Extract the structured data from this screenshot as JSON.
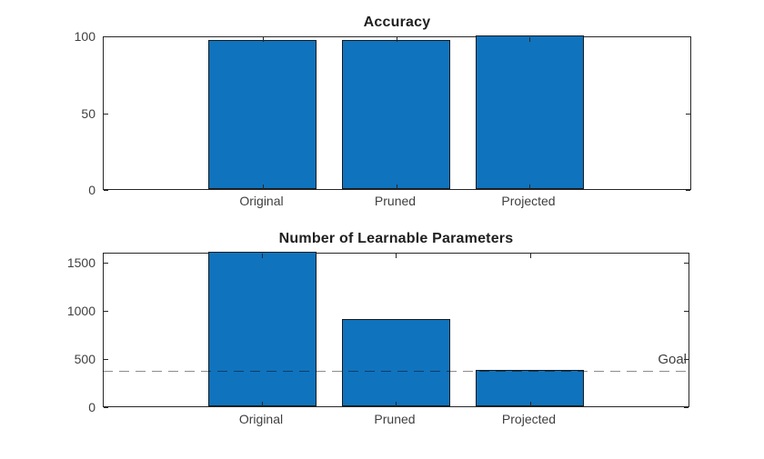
{
  "colors": {
    "bar_fill": "#1073BD",
    "bar_edge": "#1a1a1a",
    "axis": "#262626",
    "tick_label": "#3f3f3f",
    "title": "#1f1f1f",
    "goal_line": "#8c8c8c",
    "goal_text": "#3d3d3d",
    "background": "#ffffff"
  },
  "chart_data": [
    {
      "type": "bar",
      "title": "Accuracy",
      "categories": [
        "Original",
        "Pruned",
        "Projected"
      ],
      "values": [
        97,
        97,
        100
      ],
      "ylim": [
        0,
        100
      ],
      "yticks": [
        0,
        50,
        100
      ],
      "ytick_labels": [
        "0",
        "50",
        "100"
      ],
      "grid": false,
      "box": true,
      "legend": null
    },
    {
      "type": "bar",
      "title": "Number of Learnable Parameters",
      "categories": [
        "Original",
        "Pruned",
        "Projected"
      ],
      "values": [
        1600,
        900,
        380
      ],
      "ylim": [
        0,
        1600
      ],
      "yticks": [
        0,
        500,
        1000,
        1500
      ],
      "ytick_labels": [
        "0",
        "500",
        "1000",
        "1500"
      ],
      "grid": false,
      "box": true,
      "legend": null,
      "goal_line": {
        "value": 380,
        "label": "Goal",
        "style": "dashed"
      }
    }
  ]
}
